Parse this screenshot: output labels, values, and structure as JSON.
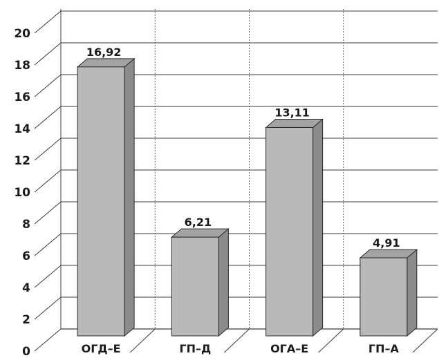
{
  "colors": {
    "bar_front": "#b9b9b9",
    "bar_side": "#8c8c8c",
    "bar_top": "#a3a3a3",
    "outline": "#2a2a2a",
    "grid": "#3a3a3a",
    "divider": "#555555"
  },
  "chart_data": {
    "type": "bar",
    "style": "3d-column",
    "categories": [
      "ОГД–Е",
      "ГП–Д",
      "ОГА–Е",
      "ГП–А"
    ],
    "values": [
      16.92,
      6.21,
      13.11,
      4.91
    ],
    "value_labels": [
      "16,92",
      "6,21",
      "13,11",
      "4,91"
    ],
    "ylim": [
      0,
      20
    ],
    "yticks": [
      0,
      2,
      4,
      6,
      8,
      10,
      12,
      14,
      16,
      18,
      20
    ],
    "grid": true,
    "legend": "none"
  }
}
